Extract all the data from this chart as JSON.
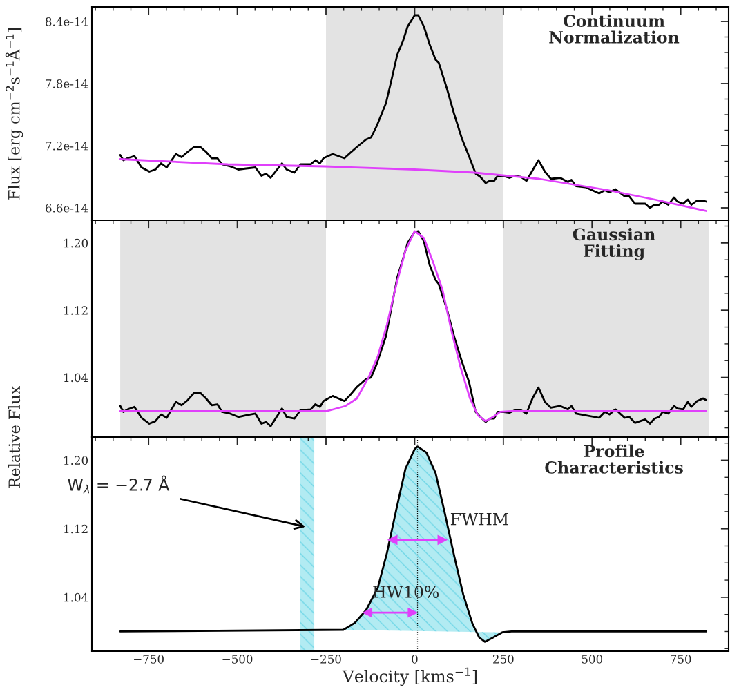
{
  "chart_data": [
    {
      "type": "line",
      "title": "Continuum\nNormalization",
      "ylabel": "Flux [erg cm$^{−2}$s$^{−1}$Å$^{−1}$]",
      "xlim": [
        -910,
        885
      ],
      "xticks": [
        -750,
        -500,
        -250,
        0,
        250,
        500,
        750
      ],
      "ylim": [
        6.48e-14,
        8.54e-14
      ],
      "yticks": [
        6.6e-14,
        7.2e-14,
        7.8e-14,
        8.4e-14
      ],
      "tick_labels": "y",
      "grid": false,
      "legend": false,
      "bands": [
        {
          "axis": "x",
          "from": -250,
          "to": 250,
          "color": "#e3e3e3"
        }
      ],
      "series": [
        {
          "color": "#000000",
          "x": [
            -830,
            -821,
            -809,
            -790,
            -770,
            -748,
            -731,
            -715,
            -699,
            -673,
            -657,
            -640,
            -621,
            -605,
            -588,
            -572,
            -556,
            -543,
            -520,
            -497,
            -475,
            -449,
            -432,
            -419,
            -406,
            -374,
            -361,
            -339,
            -322,
            -293,
            -280,
            -267,
            -257,
            -231,
            -215,
            -198,
            -182,
            -162,
            -137,
            -123,
            -107,
            -81,
            -65,
            -49,
            -33,
            -20,
            0,
            10,
            26,
            42,
            59,
            68,
            91,
            111,
            133,
            153,
            172,
            185,
            200,
            211,
            224,
            234,
            247,
            267,
            283,
            299,
            315,
            332,
            349,
            367,
            384,
            410,
            432,
            442,
            455,
            481,
            520,
            536,
            549,
            566,
            592,
            605,
            621,
            650,
            663,
            676,
            689,
            699,
            715,
            731,
            741,
            757,
            770,
            780,
            796,
            813,
            822
          ],
          "values": [
            7.11e-14,
            7.06e-14,
            7.08e-14,
            7.1e-14,
            6.99e-14,
            6.95e-14,
            6.97e-14,
            7.03e-14,
            6.99e-14,
            7.12e-14,
            7.09e-14,
            7.14e-14,
            7.19e-14,
            7.19e-14,
            7.14e-14,
            7.08e-14,
            7.08e-14,
            7.02e-14,
            7e-14,
            6.97e-14,
            6.98e-14,
            6.99e-14,
            6.91e-14,
            6.93e-14,
            6.89e-14,
            7.03e-14,
            6.97e-14,
            6.94e-14,
            7.02e-14,
            7.02e-14,
            7.06e-14,
            7.03e-14,
            7.08e-14,
            7.12e-14,
            7.1e-14,
            7.08e-14,
            7.13e-14,
            7.19e-14,
            7.26e-14,
            7.28e-14,
            7.39e-14,
            7.61e-14,
            7.84e-14,
            8.08e-14,
            8.21e-14,
            8.35e-14,
            8.46e-14,
            8.46e-14,
            8.35e-14,
            8.18e-14,
            8.03e-14,
            8e-14,
            7.75e-14,
            7.51e-14,
            7.27e-14,
            7.1e-14,
            6.93e-14,
            6.9e-14,
            6.84e-14,
            6.86e-14,
            6.86e-14,
            6.91e-14,
            6.91e-14,
            6.89e-14,
            6.91e-14,
            6.9e-14,
            6.86e-14,
            6.96e-14,
            7.06e-14,
            6.95e-14,
            6.88e-14,
            6.89e-14,
            6.85e-14,
            6.87e-14,
            6.81e-14,
            6.8e-14,
            6.74e-14,
            6.77e-14,
            6.75e-14,
            6.78e-14,
            6.71e-14,
            6.71e-14,
            6.64e-14,
            6.64e-14,
            6.6e-14,
            6.63e-14,
            6.63e-14,
            6.66e-14,
            6.63e-14,
            6.7e-14,
            6.66e-14,
            6.64e-14,
            6.68e-14,
            6.63e-14,
            6.67e-14,
            6.67e-14,
            6.66e-14
          ]
        },
        {
          "color": "#e040fb",
          "x": [
            -830,
            -527,
            -254,
            0,
            169,
            351,
            546,
            676,
            822
          ],
          "values": [
            7.07e-14,
            7.02e-14,
            7e-14,
            6.97e-14,
            6.94e-14,
            6.88e-14,
            6.77e-14,
            6.68e-14,
            6.57e-14
          ]
        }
      ]
    },
    {
      "type": "line",
      "title": "Gaussian\nFitting",
      "ylabel": "Relative Flux",
      "xlim": [
        -910,
        885
      ],
      "xticks": [
        -750,
        -500,
        -250,
        0,
        250,
        500,
        750
      ],
      "ylim": [
        0.969,
        1.227
      ],
      "yticks": [
        1.04,
        1.12,
        {
          "value": 1.2,
          "label": "1.20"
        }
      ],
      "tick_labels": "y",
      "grid": false,
      "legend": false,
      "bands": [
        {
          "axis": "x",
          "from": -830,
          "to": -250,
          "color": "#e3e3e3"
        },
        {
          "axis": "x",
          "from": 250,
          "to": 830,
          "color": "#e3e3e3"
        }
      ],
      "series": [
        {
          "color": "#000000",
          "x": [
            -830,
            -821,
            -809,
            -790,
            -770,
            -748,
            -731,
            -715,
            -699,
            -673,
            -657,
            -640,
            -621,
            -605,
            -588,
            -572,
            -556,
            -543,
            -520,
            -497,
            -475,
            -449,
            -432,
            -419,
            -406,
            -374,
            -361,
            -339,
            -322,
            -293,
            -280,
            -267,
            -257,
            -231,
            -215,
            -198,
            -182,
            -162,
            -137,
            -123,
            -107,
            -81,
            -65,
            -49,
            -33,
            -20,
            0,
            10,
            26,
            42,
            59,
            68,
            91,
            111,
            133,
            153,
            172,
            185,
            200,
            211,
            224,
            234,
            247,
            267,
            283,
            299,
            315,
            332,
            349,
            367,
            384,
            410,
            432,
            442,
            455,
            481,
            520,
            536,
            549,
            566,
            592,
            605,
            621,
            650,
            663,
            676,
            689,
            699,
            715,
            731,
            741,
            757,
            770,
            780,
            796,
            813,
            822
          ],
          "values": [
            1.006,
            0.999,
            1.002,
            1.005,
            0.992,
            0.985,
            0.988,
            0.996,
            0.992,
            1.011,
            1.007,
            1.013,
            1.022,
            1.022,
            1.015,
            1.007,
            1.008,
            0.999,
            0.997,
            0.993,
            0.995,
            0.997,
            0.985,
            0.987,
            0.982,
            1.003,
            0.993,
            0.991,
            1.001,
            1.002,
            1.008,
            1.005,
            1.012,
            1.018,
            1.015,
            1.012,
            1.019,
            1.029,
            1.038,
            1.04,
            1.056,
            1.089,
            1.124,
            1.159,
            1.181,
            1.2,
            1.213,
            1.214,
            1.202,
            1.174,
            1.156,
            1.151,
            1.121,
            1.089,
            1.059,
            1.035,
            0.999,
            0.993,
            0.987,
            0.991,
            0.991,
            0.999,
            0.999,
            0.998,
            1.001,
            1.001,
            0.997,
            1.015,
            1.028,
            1.011,
            1.004,
            1.006,
            1.002,
            1.006,
            0.997,
            0.995,
            0.992,
            0.999,
            0.996,
            1.002,
            0.992,
            0.993,
            0.986,
            0.99,
            0.985,
            0.991,
            0.993,
            0.999,
            0.997,
            1.006,
            1.003,
            1.002,
            1.011,
            1.005,
            1.012,
            1.015,
            1.013
          ]
        },
        {
          "color": "#e040fb",
          "x": [
            -830,
            -247,
            -195,
            -163,
            -130,
            -104,
            -78,
            -52,
            -26,
            0,
            26,
            52,
            78,
            104,
            130,
            156,
            178,
            200,
            221,
            241,
            273,
            822
          ],
          "values": [
            1.0,
            1.0,
            1.006,
            1.015,
            1.04,
            1.065,
            1.103,
            1.15,
            1.191,
            1.214,
            1.206,
            1.177,
            1.145,
            1.095,
            1.051,
            1.015,
            0.995,
            0.988,
            0.993,
            0.999,
            1.0,
            1.0
          ]
        }
      ]
    },
    {
      "type": "line",
      "title": "Profile\nCharacteristics",
      "xlabel": "Velocity [kms$^{−1}$]",
      "xlim": [
        -910,
        885
      ],
      "xticks": [
        {
          "value": -750,
          "label": "−750"
        },
        {
          "value": -500,
          "label": "−500"
        },
        {
          "value": -250,
          "label": "−250"
        },
        0,
        250,
        500,
        750
      ],
      "ylim": [
        0.977,
        1.227
      ],
      "yticks": [
        1.04,
        1.12,
        {
          "value": 1.2,
          "label": "1.20"
        }
      ],
      "grid": false,
      "legend": false,
      "bands": [
        {
          "axis": "x",
          "from": -322,
          "to": -283,
          "color": "#b2ebf2",
          "label": "W$_{λ}$ = −2.7 Å"
        }
      ],
      "ref_lines": [
        {
          "axis": "x",
          "value": 8,
          "color": "#000000",
          "line_style": "dotted"
        }
      ],
      "series": [
        {
          "type": "area",
          "color": "#b2ebf2",
          "x": [
            -201,
            -169,
            -137,
            -104,
            -78,
            -52,
            -26,
            0,
            8,
            33,
            59,
            84,
            111,
            137,
            163,
            182,
            198,
            221,
            247
          ],
          "values": [
            1.002,
            1.01,
            1.025,
            1.051,
            1.092,
            1.142,
            1.19,
            1.213,
            1.216,
            1.209,
            1.185,
            1.14,
            1.089,
            1.043,
            1.009,
            0.993,
            0.988,
            0.993,
            0.999
          ]
        },
        {
          "type": "line",
          "color": "#000000",
          "x": [
            -830,
            -201,
            -169,
            -137,
            -104,
            -78,
            -52,
            -26,
            0,
            8,
            33,
            59,
            84,
            111,
            137,
            163,
            182,
            198,
            221,
            247,
            273,
            822
          ],
          "values": [
            1.0,
            1.002,
            1.01,
            1.025,
            1.051,
            1.092,
            1.142,
            1.19,
            1.213,
            1.216,
            1.209,
            1.185,
            1.14,
            1.089,
            1.043,
            1.009,
            0.993,
            0.988,
            0.993,
            0.999,
            1.0,
            1.0
          ]
        },
        {
          "type": "line",
          "marker": "triangle",
          "name": "FWHM",
          "color": "#e040fb",
          "x": [
            -62,
            78
          ],
          "values": [
            1.107,
            1.107
          ]
        },
        {
          "type": "line",
          "marker": "triangle",
          "name": "HW10%",
          "color": "#e040fb",
          "x": [
            -133,
            -6
          ],
          "values": [
            1.022,
            1.022
          ]
        }
      ]
    }
  ]
}
